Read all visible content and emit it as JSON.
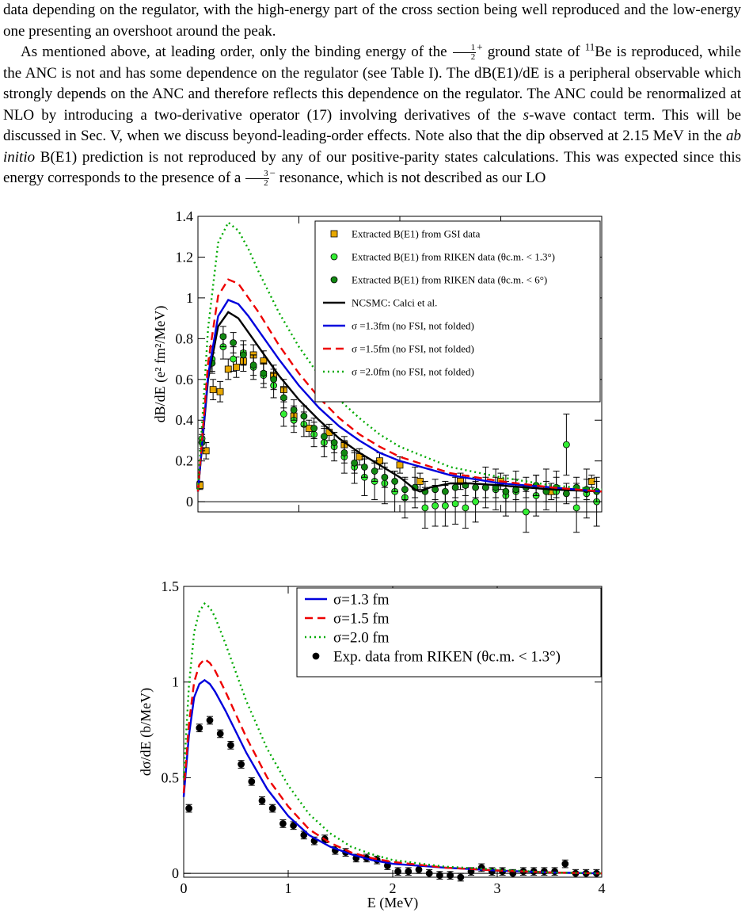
{
  "text": {
    "p1_line1": "data depending on the regulator, with the high-energy part of the cross section being well",
    "p1_line2": "reproduced and the low-energy one presenting an overshoot around the peak.",
    "p2_a": "As mentioned above, at leading order, only the binding energy of the",
    "half_num": "1",
    "half_den": "2",
    "p2_plus": "+",
    "p2_b": "ground state of",
    "be_mass": "11",
    "p2_c": "Be is reproduced, while the ANC is not and has some dependence on the regulator (see Table I). The dB(E1)/dE is a peripheral observable which strongly depends on the ANC and therefore reflects this dependence on the regulator. The ANC could be renormalized at NLO by introducing a two-derivative operator (17) involving derivatives of the",
    "s_italic": "s",
    "p2_d": "-wave contact term. This will be discussed in Sec. V, when we discuss beyond-leading-order effects. Note also that the dip observed at 2.15 MeV in the",
    "ab_initio": "ab initio",
    "p2_e": "B(E1) prediction is not reproduced by any of our positive-parity states calculations. This was expected since this energy corresponds to the presence of a",
    "three_num": "3",
    "three_den": "2",
    "p2_minus": "−",
    "p2_f": "resonance, which is not described as our LO"
  },
  "chart_data": [
    {
      "type": "line",
      "xlim": [
        0,
        4
      ],
      "ylim": [
        -0.05,
        1.4
      ],
      "ylabel": "dB/dE (e² fm²/MeV)",
      "yticks": [
        0,
        0.2,
        0.4,
        0.6,
        0.8,
        1,
        1.2,
        1.4
      ],
      "ytick_labels": [
        "0",
        "0.2",
        "0.4",
        "0.6",
        "0.8",
        "1",
        "1.2",
        "1.4"
      ],
      "legend_position": "top-right",
      "series": [
        {
          "name": "NCSMC: Calci et al.",
          "color": "#000000",
          "style": "solid",
          "x": [
            0,
            0.1,
            0.2,
            0.3,
            0.4,
            0.5,
            0.6,
            0.8,
            1,
            1.2,
            1.4,
            1.6,
            1.8,
            2.0,
            2.1,
            2.15,
            2.2,
            2.3,
            2.5,
            2.7,
            3.0,
            3.5,
            4.0
          ],
          "y": [
            0.05,
            0.6,
            0.86,
            0.93,
            0.9,
            0.83,
            0.76,
            0.62,
            0.5,
            0.4,
            0.31,
            0.24,
            0.18,
            0.12,
            0.08,
            0.06,
            0.05,
            0.07,
            0.09,
            0.09,
            0.08,
            0.06,
            0.05
          ]
        },
        {
          "name": "σ =1.3fm (no FSI, not folded)",
          "color": "#0000dd",
          "style": "solid",
          "x": [
            0,
            0.1,
            0.2,
            0.3,
            0.4,
            0.5,
            0.6,
            0.8,
            1,
            1.2,
            1.4,
            1.6,
            1.8,
            2.0,
            2.5,
            3.0,
            3.5,
            4.0
          ],
          "y": [
            0.05,
            0.62,
            0.91,
            0.99,
            0.97,
            0.91,
            0.84,
            0.7,
            0.57,
            0.46,
            0.37,
            0.3,
            0.24,
            0.2,
            0.13,
            0.09,
            0.07,
            0.05
          ]
        },
        {
          "name": "σ =1.5fm (no FSI, not folded)",
          "color": "#ee0000",
          "style": "dashed",
          "x": [
            0,
            0.1,
            0.2,
            0.3,
            0.4,
            0.5,
            0.6,
            0.8,
            1,
            1.2,
            1.4,
            1.6,
            1.8,
            2.0,
            2.5,
            3.0,
            3.5,
            4.0
          ],
          "y": [
            0.05,
            0.68,
            1.01,
            1.09,
            1.07,
            1.0,
            0.93,
            0.77,
            0.63,
            0.51,
            0.41,
            0.33,
            0.27,
            0.22,
            0.14,
            0.1,
            0.07,
            0.05
          ]
        },
        {
          "name": "σ =2.0fm (no FSI, not folded)",
          "color": "#00aa00",
          "style": "dotted",
          "x": [
            0,
            0.1,
            0.2,
            0.3,
            0.4,
            0.5,
            0.6,
            0.8,
            1,
            1.2,
            1.4,
            1.6,
            1.8,
            2.0,
            2.5,
            3.0,
            3.5,
            4.0
          ],
          "y": [
            0.06,
            0.85,
            1.27,
            1.37,
            1.33,
            1.24,
            1.13,
            0.93,
            0.76,
            0.62,
            0.5,
            0.41,
            0.33,
            0.27,
            0.17,
            0.12,
            0.08,
            0.06
          ]
        }
      ],
      "scatter_series": [
        {
          "name": "Extracted B(E1) from GSI data",
          "marker": "square",
          "color": "#e8a800",
          "x": [
            0.02,
            0.08,
            0.15,
            0.22,
            0.3,
            0.38,
            0.45,
            0.55,
            0.65,
            0.75,
            0.85,
            0.95,
            1.1,
            1.3,
            1.45,
            1.6,
            1.8,
            2.0,
            2.2,
            2.6,
            3.0,
            3.5,
            3.9
          ],
          "y": [
            0.08,
            0.25,
            0.55,
            0.54,
            0.65,
            0.66,
            0.69,
            0.72,
            0.69,
            0.62,
            0.55,
            0.42,
            0.36,
            0.34,
            0.28,
            0.22,
            0.2,
            0.18,
            0.1,
            0.1,
            0.1,
            0.05,
            0.1
          ],
          "err": [
            0.02,
            0.04,
            0.05,
            0.05,
            0.05,
            0.05,
            0.05,
            0.05,
            0.05,
            0.05,
            0.05,
            0.05,
            0.04,
            0.04,
            0.04,
            0.04,
            0.04,
            0.04,
            0.04,
            0.04,
            0.04,
            0.04,
            0.03
          ]
        },
        {
          "name": "Extracted B(E1) from RIKEN data (θc.m. < 1.3°)",
          "marker": "circle",
          "color": "#33ee33",
          "x": [
            0.04,
            0.14,
            0.25,
            0.35,
            0.45,
            0.55,
            0.65,
            0.75,
            0.85,
            0.95,
            1.05,
            1.15,
            1.25,
            1.35,
            1.45,
            1.55,
            1.65,
            1.75,
            1.85,
            1.95,
            2.05,
            2.15,
            2.25,
            2.35,
            2.45,
            2.55,
            2.65,
            2.75,
            2.85,
            2.95,
            3.05,
            3.15,
            3.25,
            3.35,
            3.45,
            3.55,
            3.65,
            3.75,
            3.85,
            3.95
          ],
          "y": [
            0.31,
            0.7,
            0.76,
            0.7,
            0.73,
            0.66,
            0.62,
            0.57,
            0.43,
            0.4,
            0.38,
            0.33,
            0.29,
            0.27,
            0.22,
            0.17,
            0.12,
            0.1,
            0.09,
            0.05,
            0.02,
            0.07,
            -0.03,
            -0.02,
            -0.02,
            -0.01,
            -0.03,
            0.0,
            0.07,
            0.06,
            0.03,
            0.05,
            -0.05,
            0.03,
            0.06,
            0.05,
            0.28,
            -0.03,
            0.04,
            0.0
          ],
          "err": [
            0.05,
            0.06,
            0.06,
            0.06,
            0.06,
            0.06,
            0.06,
            0.06,
            0.06,
            0.06,
            0.06,
            0.06,
            0.07,
            0.07,
            0.08,
            0.08,
            0.09,
            0.09,
            0.1,
            0.1,
            0.1,
            0.1,
            0.1,
            0.1,
            0.1,
            0.1,
            0.1,
            0.1,
            0.1,
            0.1,
            0.1,
            0.1,
            0.1,
            0.1,
            0.1,
            0.1,
            0.15,
            0.12,
            0.12,
            0.12
          ]
        },
        {
          "name": "Extracted B(E1) from RIKEN data (θc.m. < 6°)",
          "marker": "circle",
          "color": "#118811",
          "x": [
            0.04,
            0.14,
            0.25,
            0.35,
            0.45,
            0.55,
            0.65,
            0.75,
            0.85,
            0.95,
            1.05,
            1.15,
            1.25,
            1.35,
            1.45,
            1.55,
            1.65,
            1.75,
            1.85,
            1.95,
            2.05,
            2.15,
            2.25,
            2.35,
            2.45,
            2.55,
            2.65,
            2.75,
            2.85,
            2.95,
            3.05,
            3.15,
            3.25,
            3.35,
            3.45,
            3.55,
            3.65,
            3.75,
            3.85,
            3.95
          ],
          "y": [
            0.29,
            0.68,
            0.81,
            0.78,
            0.72,
            0.67,
            0.63,
            0.6,
            0.51,
            0.45,
            0.42,
            0.36,
            0.32,
            0.29,
            0.24,
            0.19,
            0.17,
            0.15,
            0.12,
            0.1,
            0.06,
            0.07,
            0.05,
            0.06,
            0.05,
            0.07,
            0.08,
            0.07,
            0.07,
            0.07,
            0.05,
            0.06,
            0.07,
            0.08,
            0.05,
            0.07,
            0.04,
            0.07,
            0.06,
            0.05
          ],
          "err": [
            0.04,
            0.05,
            0.05,
            0.05,
            0.05,
            0.05,
            0.05,
            0.05,
            0.05,
            0.05,
            0.05,
            0.05,
            0.05,
            0.05,
            0.05,
            0.05,
            0.05,
            0.05,
            0.05,
            0.05,
            0.05,
            0.05,
            0.05,
            0.05,
            0.05,
            0.05,
            0.05,
            0.05,
            0.05,
            0.05,
            0.05,
            0.05,
            0.05,
            0.05,
            0.05,
            0.05,
            0.05,
            0.05,
            0.05,
            0.05
          ]
        }
      ]
    },
    {
      "type": "line",
      "xlim": [
        0,
        4
      ],
      "ylim": [
        -0.02,
        1.5
      ],
      "xlabel": "E (MeV)",
      "ylabel": "dσ/dE  (b/MeV)",
      "xticks": [
        0,
        1,
        2,
        3,
        4
      ],
      "xtick_labels": [
        "0",
        "1",
        "2",
        "3",
        "4"
      ],
      "yticks": [
        0,
        0.5,
        1,
        1.5
      ],
      "ytick_labels": [
        "0",
        "0.5",
        "1",
        "1.5"
      ],
      "legend_position": "top-right",
      "series": [
        {
          "name": "σ=1.3 fm",
          "color": "#0000dd",
          "style": "solid",
          "x": [
            0,
            0.05,
            0.1,
            0.15,
            0.2,
            0.25,
            0.3,
            0.4,
            0.5,
            0.6,
            0.8,
            1,
            1.2,
            1.4,
            1.6,
            1.8,
            2.0,
            2.5,
            3.0,
            3.5,
            4.0
          ],
          "y": [
            0.4,
            0.72,
            0.92,
            0.99,
            1.01,
            0.99,
            0.95,
            0.85,
            0.74,
            0.63,
            0.44,
            0.3,
            0.2,
            0.14,
            0.1,
            0.07,
            0.05,
            0.03,
            0.015,
            0.005,
            0.0
          ]
        },
        {
          "name": "σ=1.5 fm",
          "color": "#ee0000",
          "style": "dashed",
          "x": [
            0,
            0.05,
            0.1,
            0.15,
            0.2,
            0.25,
            0.3,
            0.4,
            0.5,
            0.6,
            0.8,
            1,
            1.2,
            1.4,
            1.6,
            1.8,
            2.0,
            2.5,
            3.0,
            3.5,
            4.0
          ],
          "y": [
            0.42,
            0.78,
            1.0,
            1.09,
            1.12,
            1.1,
            1.06,
            0.95,
            0.83,
            0.71,
            0.5,
            0.35,
            0.23,
            0.16,
            0.11,
            0.08,
            0.06,
            0.03,
            0.015,
            0.005,
            0.0
          ]
        },
        {
          "name": "σ=2.0 fm",
          "color": "#00aa00",
          "style": "dotted",
          "x": [
            0,
            0.05,
            0.1,
            0.15,
            0.2,
            0.25,
            0.3,
            0.4,
            0.5,
            0.6,
            0.8,
            1,
            1.2,
            1.4,
            1.6,
            1.8,
            2.0,
            2.5,
            3.0,
            3.5,
            4.0
          ],
          "y": [
            0.5,
            0.98,
            1.26,
            1.37,
            1.41,
            1.39,
            1.34,
            1.2,
            1.05,
            0.9,
            0.65,
            0.46,
            0.31,
            0.21,
            0.14,
            0.1,
            0.07,
            0.035,
            0.02,
            0.005,
            0.0
          ]
        }
      ],
      "scatter_series": [
        {
          "name": "Exp. data from RIKEN (θc.m. < 1.3°)",
          "marker": "circle",
          "color": "#000000",
          "x": [
            0.05,
            0.15,
            0.25,
            0.35,
            0.45,
            0.55,
            0.65,
            0.75,
            0.85,
            0.95,
            1.05,
            1.15,
            1.25,
            1.35,
            1.45,
            1.55,
            1.65,
            1.75,
            1.85,
            1.95,
            2.05,
            2.15,
            2.25,
            2.35,
            2.45,
            2.55,
            2.65,
            2.75,
            2.85,
            2.95,
            3.05,
            3.15,
            3.25,
            3.35,
            3.45,
            3.55,
            3.65,
            3.75,
            3.85,
            3.95
          ],
          "y": [
            0.34,
            0.76,
            0.8,
            0.73,
            0.67,
            0.57,
            0.48,
            0.38,
            0.34,
            0.26,
            0.25,
            0.2,
            0.17,
            0.18,
            0.12,
            0.11,
            0.08,
            0.08,
            0.07,
            0.04,
            0.01,
            0.01,
            0.02,
            0.0,
            -0.01,
            -0.01,
            -0.02,
            0.01,
            0.03,
            0.01,
            0.01,
            0.0,
            0.01,
            0.01,
            0.01,
            0.01,
            0.05,
            0.0,
            0.0,
            0.0
          ],
          "err": [
            0.02,
            0.02,
            0.02,
            0.02,
            0.02,
            0.02,
            0.02,
            0.02,
            0.02,
            0.02,
            0.02,
            0.02,
            0.02,
            0.02,
            0.02,
            0.02,
            0.02,
            0.02,
            0.02,
            0.02,
            0.02,
            0.02,
            0.02,
            0.02,
            0.02,
            0.02,
            0.02,
            0.02,
            0.02,
            0.02,
            0.02,
            0.02,
            0.02,
            0.02,
            0.02,
            0.02,
            0.02,
            0.02,
            0.02,
            0.02
          ]
        }
      ]
    }
  ]
}
